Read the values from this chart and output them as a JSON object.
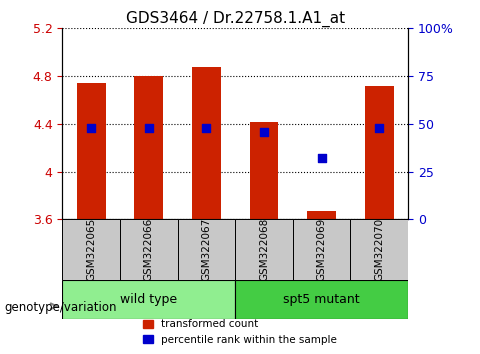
{
  "title": "GDS3464 / Dr.22758.1.A1_at",
  "samples": [
    "GSM322065",
    "GSM322066",
    "GSM322067",
    "GSM322068",
    "GSM322069",
    "GSM322070"
  ],
  "groups": [
    "wild type",
    "wild type",
    "wild type",
    "spt5 mutant",
    "spt5 mutant",
    "spt5 mutant"
  ],
  "group_labels": [
    "wild type",
    "spt5 mutant"
  ],
  "group_colors": [
    "#90EE90",
    "#00CC00"
  ],
  "bar_bottom": 3.6,
  "transformed_counts": [
    4.74,
    4.8,
    4.88,
    4.42,
    3.67,
    4.72
  ],
  "percentile_ranks": [
    48,
    48,
    48,
    46,
    32,
    48
  ],
  "ylim_left": [
    3.6,
    5.2
  ],
  "ylim_right": [
    0,
    100
  ],
  "yticks_left": [
    3.6,
    4.0,
    4.4,
    4.8,
    5.2
  ],
  "yticks_right": [
    0,
    25,
    50,
    75,
    100
  ],
  "ytick_labels_left": [
    "3.6",
    "4",
    "4.4",
    "4.8",
    "5.2"
  ],
  "ytick_labels_right": [
    "0",
    "25",
    "50",
    "75",
    "100%"
  ],
  "bar_color": "#CC2200",
  "dot_color": "#0000CC",
  "grid_color": "#000000",
  "bg_color": "#FFFFFF",
  "plot_bg_color": "#FFFFFF",
  "xlabel_color": "#CC0000",
  "ylabel_right_color": "#0000CC",
  "genotype_label": "genotype/variation",
  "legend_items": [
    "transformed count",
    "percentile rank within the sample"
  ],
  "bar_width": 0.5,
  "dot_size": 40
}
